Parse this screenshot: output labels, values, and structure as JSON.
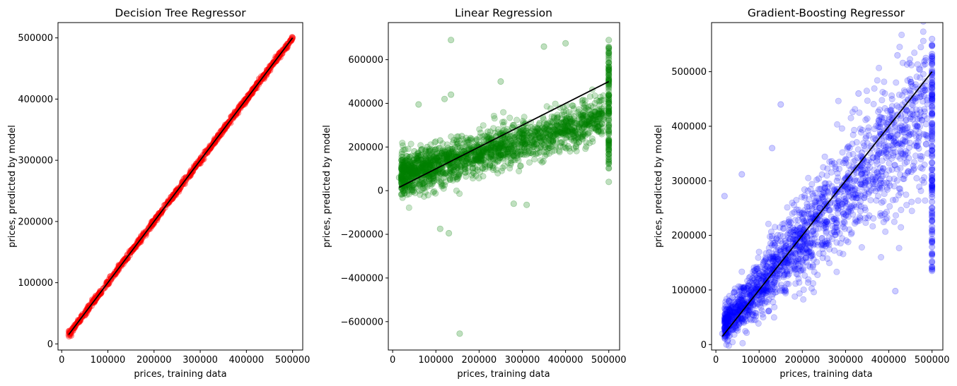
{
  "chart_data": [
    {
      "type": "scatter",
      "title": "Decision Tree Regressor",
      "xlabel": "prices, training data",
      "ylabel": "prices, predicted by model",
      "xlim": [
        -8000,
        522000
      ],
      "ylim": [
        -10000,
        525000
      ],
      "xticks": [
        0,
        100000,
        200000,
        300000,
        400000,
        500000
      ],
      "yticks": [
        0,
        100000,
        200000,
        300000,
        400000,
        500000
      ],
      "xtick_labels": [
        "0",
        "100000",
        "200000",
        "300000",
        "400000",
        "500000"
      ],
      "ytick_labels": [
        "0",
        "100000",
        "200000",
        "300000",
        "400000",
        "500000"
      ],
      "grid": false,
      "series": [
        {
          "color": "#ff0000",
          "alpha": 0.25,
          "x": [
            14999,
            20000,
            30000,
            40000,
            50000,
            60000,
            70000,
            80000,
            90000,
            100000,
            110000,
            120000,
            130000,
            140000,
            150000,
            160000,
            170000,
            180000,
            190000,
            200000,
            210000,
            220000,
            230000,
            240000,
            250000,
            260000,
            270000,
            280000,
            290000,
            300000,
            310000,
            320000,
            330000,
            340000,
            350000,
            360000,
            370000,
            380000,
            390000,
            400000,
            410000,
            420000,
            430000,
            440000,
            450000,
            460000,
            470000,
            480000,
            490000,
            500001
          ],
          "y": [
            14999,
            20000,
            30000,
            40000,
            50000,
            60000,
            70000,
            80000,
            90000,
            100000,
            110000,
            120000,
            130000,
            140000,
            150000,
            160000,
            170000,
            180000,
            190000,
            200000,
            210000,
            220000,
            230000,
            240000,
            250000,
            260000,
            270000,
            280000,
            290000,
            300000,
            310000,
            320000,
            330000,
            340000,
            350000,
            360000,
            370000,
            380000,
            390000,
            400000,
            410000,
            420000,
            430000,
            440000,
            450000,
            460000,
            470000,
            480000,
            490000,
            500001
          ]
        }
      ],
      "reference_line": {
        "color": "#000000",
        "x": [
          14999,
          500001
        ],
        "y": [
          14999,
          500001
        ]
      }
    },
    {
      "type": "scatter",
      "title": "Linear Regression",
      "xlabel": "prices, training data",
      "ylabel": "prices, predicted by model",
      "xlim": [
        -10000,
        525000
      ],
      "ylim": [
        -730000,
        770000
      ],
      "xticks": [
        0,
        100000,
        200000,
        300000,
        400000,
        500000
      ],
      "yticks": [
        -600000,
        -400000,
        -200000,
        0,
        200000,
        400000,
        600000
      ],
      "xtick_labels": [
        "0",
        "100000",
        "200000",
        "300000",
        "400000",
        "500000"
      ],
      "ytick_labels": [
        "−600000",
        "−400000",
        "−200000",
        "0",
        "200000",
        "400000",
        "600000"
      ],
      "grid": false,
      "series": [
        {
          "color": "#008000",
          "alpha": 0.25,
          "x": [
            15000,
            30000,
            40000,
            50000,
            60000,
            70000,
            80000,
            90000,
            100000,
            110000,
            120000,
            130000,
            140000,
            150000,
            160000,
            180000,
            200000,
            220000,
            240000,
            260000,
            280000,
            300000,
            320000,
            340000,
            360000,
            380000,
            400000,
            420000,
            440000,
            460000,
            480000,
            500001,
            500001,
            500001,
            500001,
            500001,
            500001,
            500001,
            110000,
            130000,
            135000,
            155000,
            120000,
            250000,
            350000,
            400000,
            135000,
            60000,
            280000,
            310000
          ],
          "y": [
            60000,
            110000,
            90000,
            180000,
            140000,
            120000,
            200000,
            160000,
            150000,
            230000,
            180000,
            170000,
            220000,
            200000,
            250000,
            240000,
            210000,
            270000,
            250000,
            230000,
            300000,
            260000,
            290000,
            310000,
            280000,
            330000,
            320000,
            290000,
            340000,
            350000,
            300000,
            690000,
            600000,
            500000,
            400000,
            300000,
            200000,
            40000,
            -175000,
            -195000,
            690000,
            -655000,
            420000,
            500000,
            660000,
            675000,
            440000,
            395000,
            -60000,
            -65000
          ]
        }
      ],
      "reference_line": {
        "color": "#000000",
        "x": [
          14999,
          500001
        ],
        "y": [
          14999,
          500001
        ]
      }
    },
    {
      "type": "scatter",
      "title": "Gradient-Boosting Regressor",
      "xlabel": "prices, training data",
      "ylabel": "prices, predicted by model",
      "xlim": [
        -10000,
        525000
      ],
      "ylim": [
        -10000,
        590000
      ],
      "xticks": [
        0,
        100000,
        200000,
        300000,
        400000,
        500000
      ],
      "yticks": [
        0,
        100000,
        200000,
        300000,
        400000,
        500000
      ],
      "xtick_labels": [
        "0",
        "100000",
        "200000",
        "300000",
        "400000",
        "500000"
      ],
      "ytick_labels": [
        "0",
        "100000",
        "200000",
        "300000",
        "400000",
        "500000"
      ],
      "grid": false,
      "series": [
        {
          "color": "#0000ff",
          "alpha": 0.2,
          "x": [
            15000,
            20000,
            40000,
            60000,
            80000,
            100000,
            120000,
            140000,
            160000,
            180000,
            200000,
            220000,
            240000,
            260000,
            280000,
            300000,
            320000,
            340000,
            360000,
            380000,
            400000,
            420000,
            440000,
            460000,
            480000,
            500001,
            500001,
            500001,
            500001,
            500001,
            500001,
            500001,
            500001,
            150000,
            130000,
            415000,
            20000,
            60000,
            330000,
            420000
          ],
          "y": [
            20000,
            30000,
            60000,
            90000,
            100000,
            130000,
            150000,
            160000,
            190000,
            200000,
            230000,
            240000,
            250000,
            280000,
            300000,
            290000,
            320000,
            340000,
            360000,
            390000,
            380000,
            420000,
            430000,
            450000,
            470000,
            560000,
            500000,
            450000,
            400000,
            350000,
            300000,
            250000,
            135000,
            440000,
            360000,
            98000,
            272000,
            312000,
            460000,
            530000
          ]
        }
      ],
      "reference_line": {
        "color": "#000000",
        "x": [
          14999,
          500001
        ],
        "y": [
          14999,
          500001
        ]
      }
    }
  ]
}
